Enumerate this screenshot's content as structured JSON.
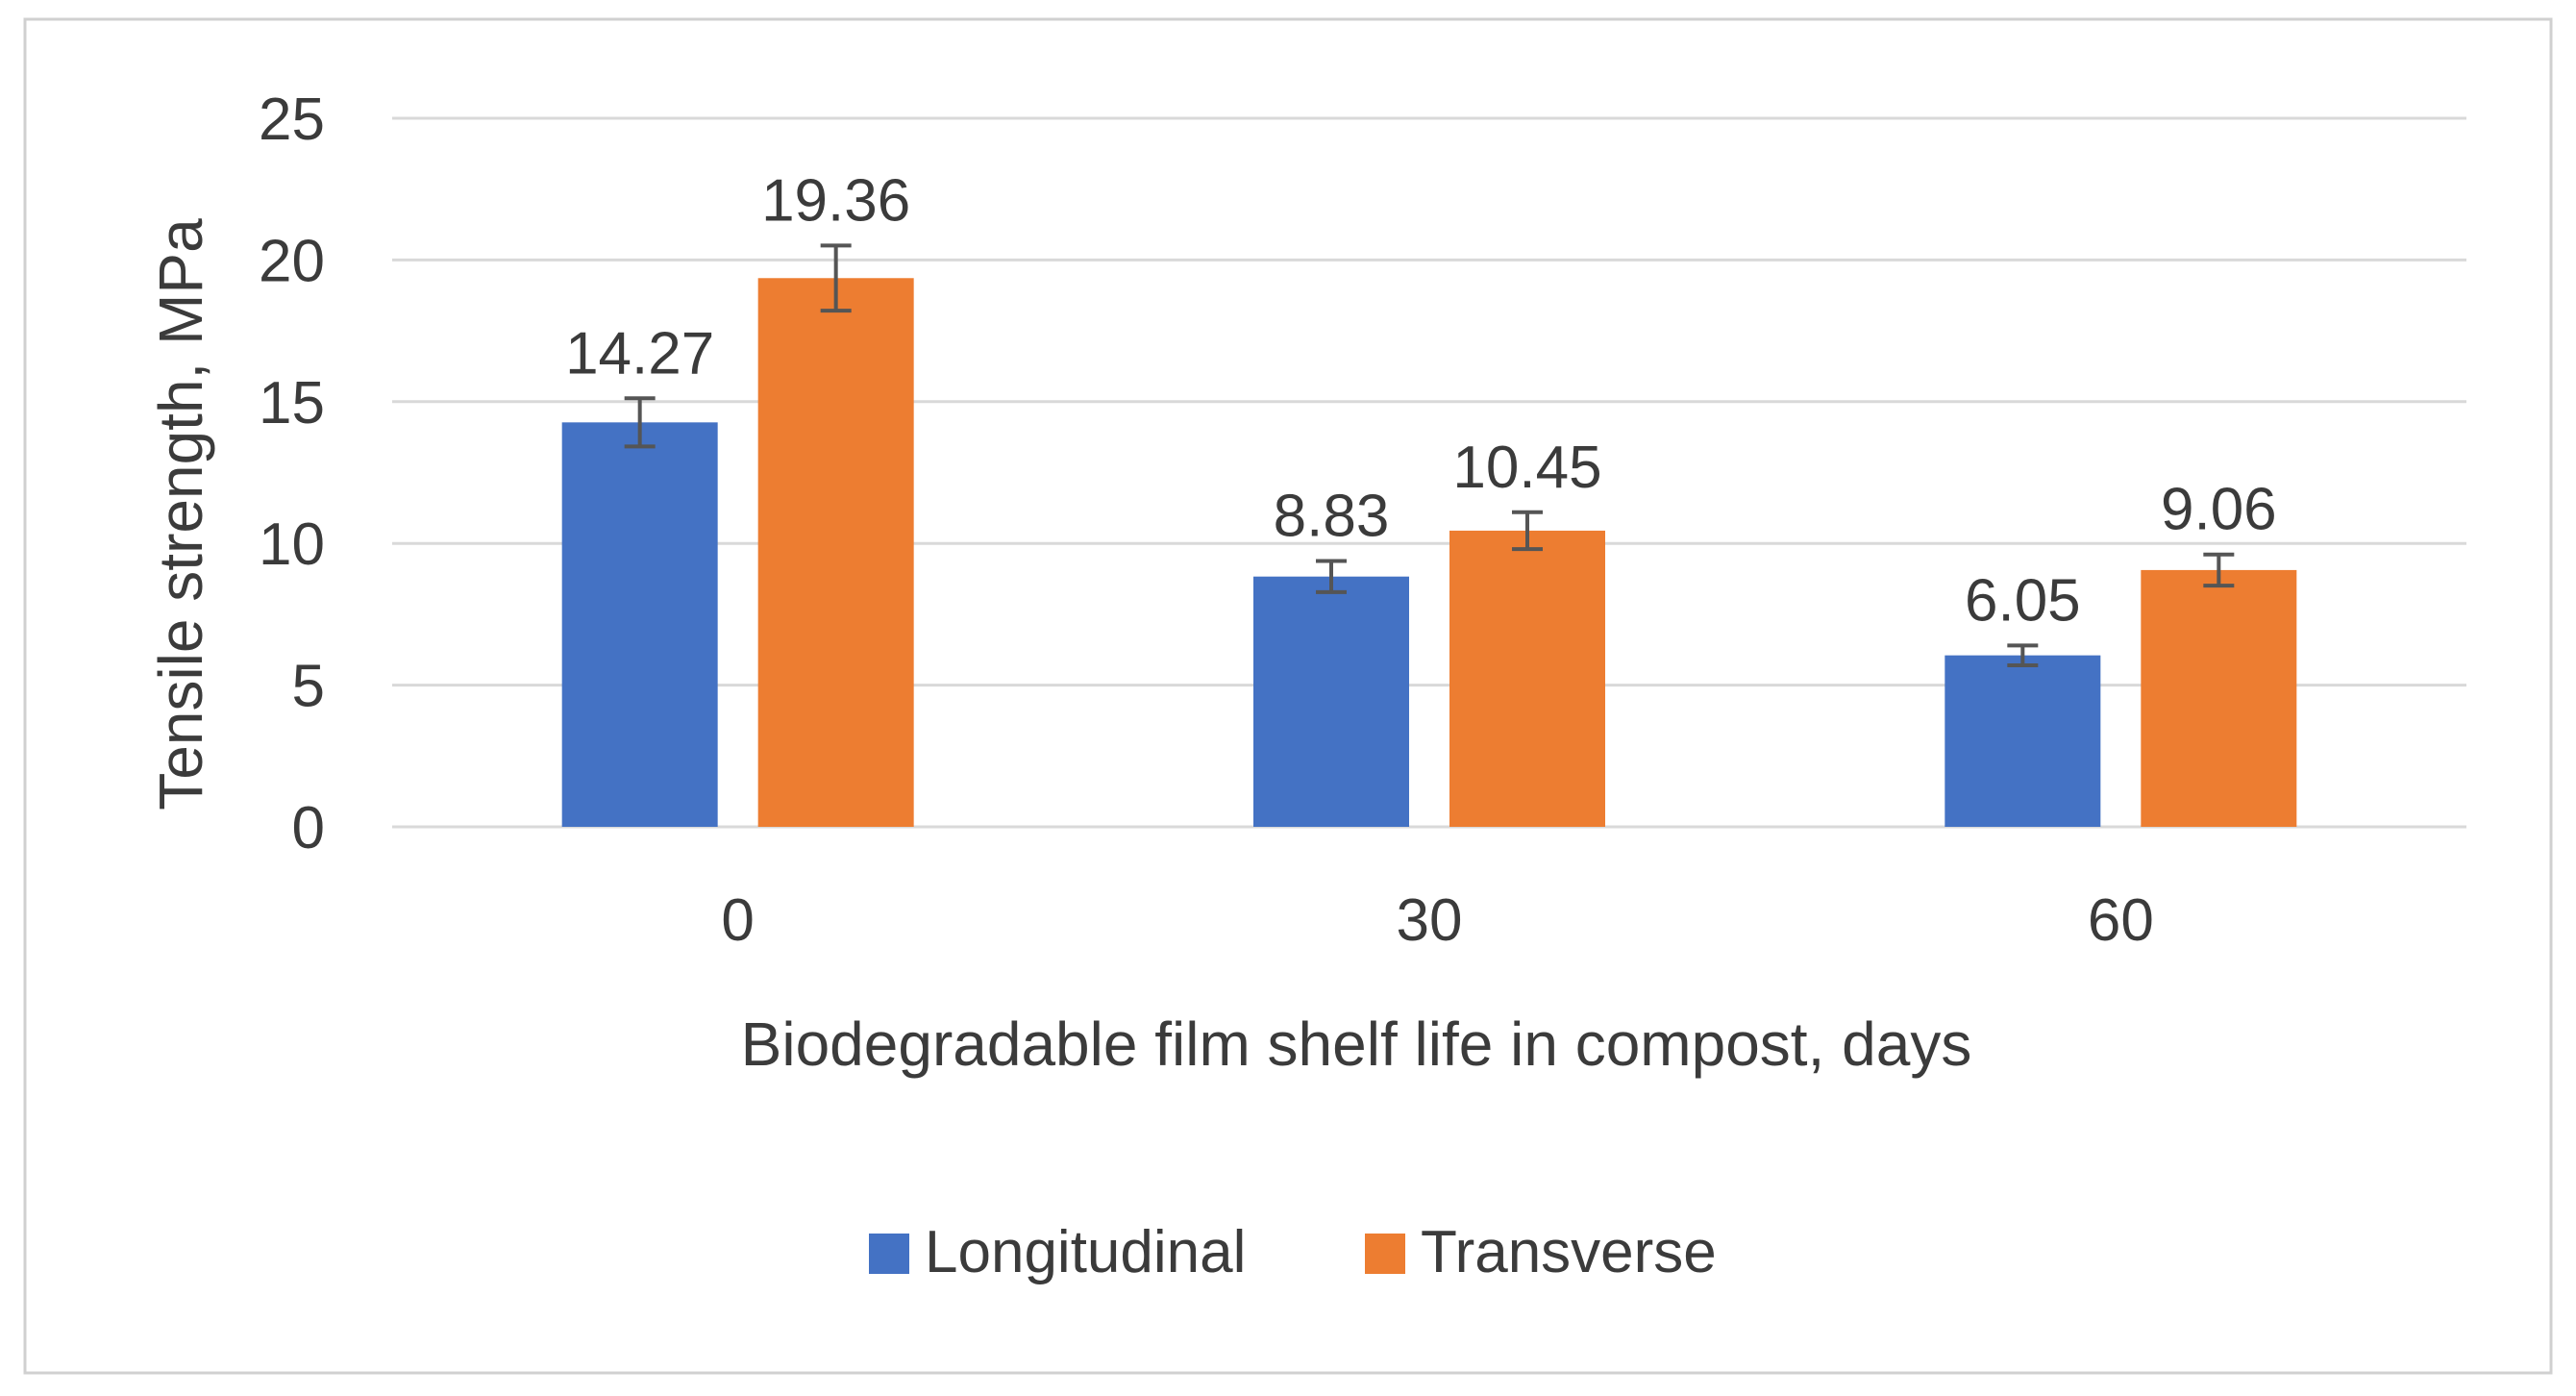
{
  "chart_data": {
    "type": "bar",
    "title": "",
    "xlabel": "Biodegradable film shelf life in compost, days",
    "ylabel": "Tensile strength, MPa",
    "categories": [
      "0",
      "30",
      "60"
    ],
    "ylim": [
      0,
      25
    ],
    "yticks": [
      "0",
      "5",
      "10",
      "15",
      "20",
      "25"
    ],
    "grid": true,
    "legend_position": "bottom",
    "series": [
      {
        "name": "Longitudinal",
        "color": "#4472C4",
        "values": [
          14.27,
          8.83,
          6.05
        ],
        "labels": [
          "14.27",
          "8.83",
          "6.05"
        ],
        "errors": [
          0.85,
          0.55,
          0.35
        ]
      },
      {
        "name": "Transverse",
        "color": "#ED7D31",
        "values": [
          19.36,
          10.45,
          9.06
        ],
        "labels": [
          "19.36",
          "10.45",
          "9.06"
        ],
        "errors": [
          1.15,
          0.65,
          0.55
        ]
      }
    ]
  }
}
